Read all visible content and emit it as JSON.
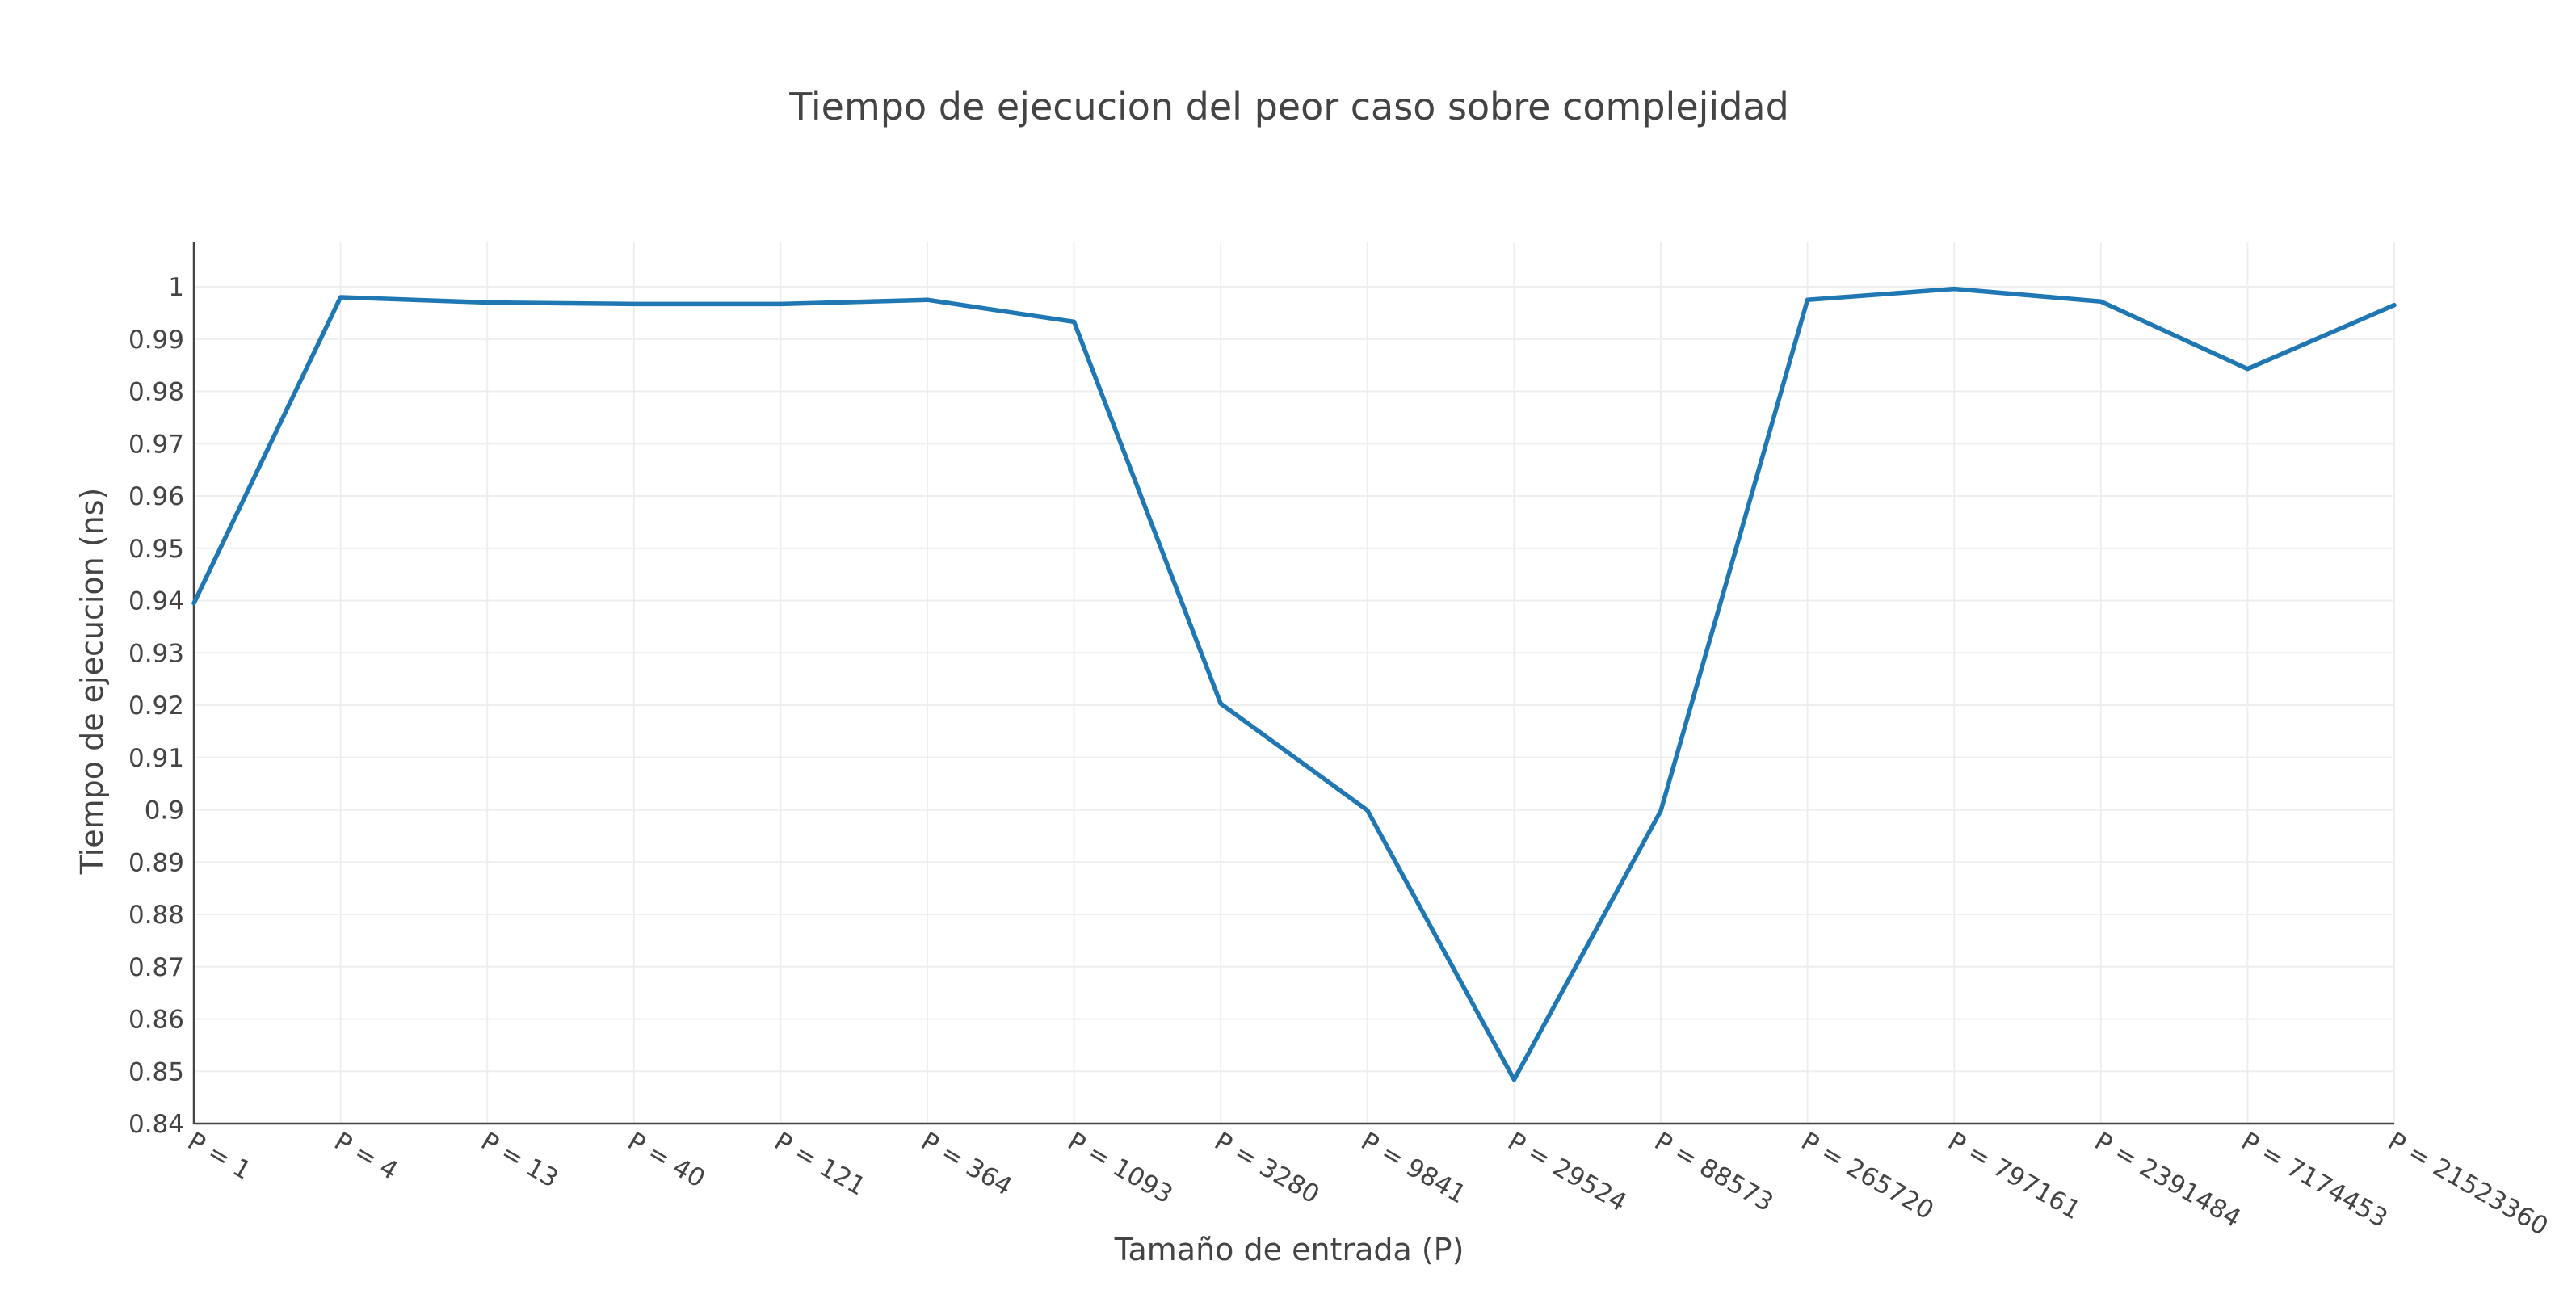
{
  "chart_data": {
    "type": "line",
    "title": "Tiempo de ejecucion del peor caso sobre complejidad",
    "xlabel": "Tamaño de entrada (P)",
    "ylabel": "Tiempo de ejecucion (ns)",
    "categories": [
      "P = 1",
      "P = 4",
      "P = 13",
      "P = 40",
      "P = 121",
      "P = 364",
      "P = 1093",
      "P = 3280",
      "P = 9841",
      "P = 29524",
      "P = 88573",
      "P = 265720",
      "P = 797161",
      "P = 2391484",
      "P = 7174453",
      "P = 21523360"
    ],
    "series": [
      {
        "values": [
          0.9395,
          0.998,
          0.997,
          0.9967,
          0.9967,
          0.9975,
          0.9933,
          0.9203,
          0.8999,
          0.8484,
          0.8998,
          0.9975,
          0.9996,
          0.9972,
          0.9843,
          0.9965
        ],
        "color": "#1f77b4"
      }
    ],
    "ylim": [
      0.84,
      1.0085
    ],
    "yticks": [
      "0.84",
      "0.85",
      "0.86",
      "0.87",
      "0.88",
      "0.89",
      "0.9",
      "0.91",
      "0.92",
      "0.93",
      "0.94",
      "0.95",
      "0.96",
      "0.97",
      "0.98",
      "0.99",
      "1"
    ],
    "grid": true,
    "legend": "none"
  }
}
